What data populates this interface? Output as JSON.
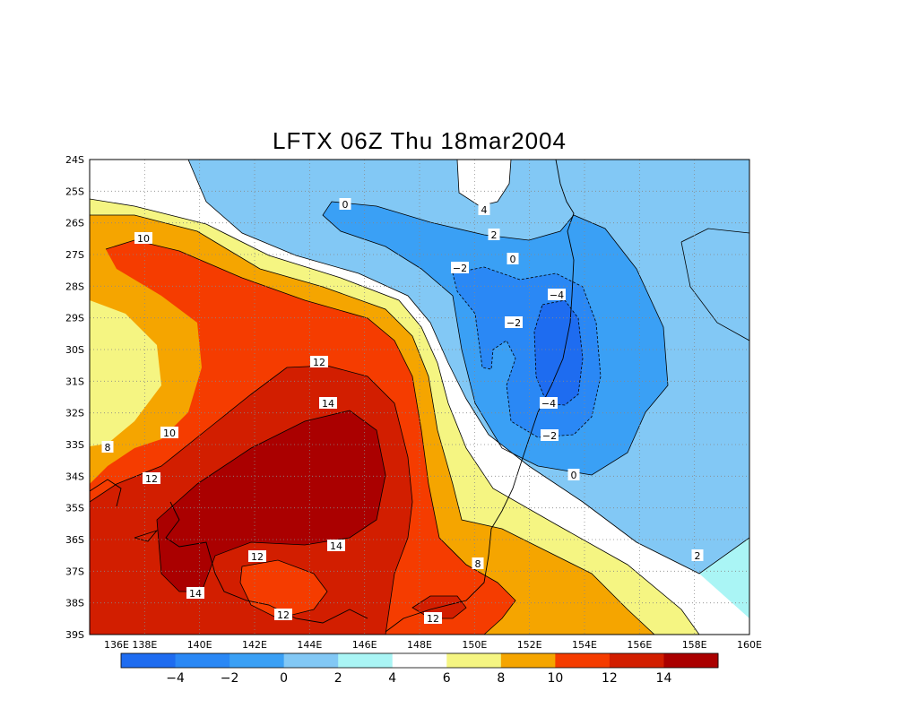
{
  "map": {
    "title": "LFTX 06Z Thu 18mar2004",
    "lat_labels": [
      "24S",
      "25S",
      "26S",
      "27S",
      "28S",
      "29S",
      "30S",
      "31S",
      "32S",
      "33S",
      "34S",
      "35S",
      "36S",
      "37S",
      "38S",
      "39S"
    ],
    "lon_labels": [
      "136E",
      "138E",
      "140E",
      "142E",
      "144E",
      "146E",
      "148E",
      "150E",
      "152E",
      "154E",
      "156E",
      "158E",
      "160E"
    ],
    "contour_labels": [
      {
        "text": "0"
      },
      {
        "text": "4"
      },
      {
        "text": "2"
      },
      {
        "text": "0"
      },
      {
        "text": "-2"
      },
      {
        "text": "-4"
      },
      {
        "text": "-2"
      },
      {
        "text": "12"
      },
      {
        "text": "14"
      },
      {
        "text": "-4"
      },
      {
        "text": "-2"
      },
      {
        "text": "10"
      },
      {
        "text": "8"
      },
      {
        "text": "12"
      },
      {
        "text": "10"
      },
      {
        "text": "0"
      },
      {
        "text": "14"
      },
      {
        "text": "12"
      },
      {
        "text": "8"
      },
      {
        "text": "2"
      },
      {
        "text": "14"
      },
      {
        "text": "12"
      },
      {
        "text": "12"
      }
    ]
  },
  "colorbar": {
    "colors": [
      "#1e6cf0",
      "#2a88f5",
      "#3aa0f5",
      "#82c8f5",
      "#aaf5f5",
      "#ffffff",
      "#f5f582",
      "#f5a500",
      "#f53c00",
      "#d21e00",
      "#aa0000"
    ],
    "labels": [
      "-4",
      "-2",
      "0",
      "2",
      "4",
      "6",
      "8",
      "10",
      "12",
      "14"
    ]
  }
}
